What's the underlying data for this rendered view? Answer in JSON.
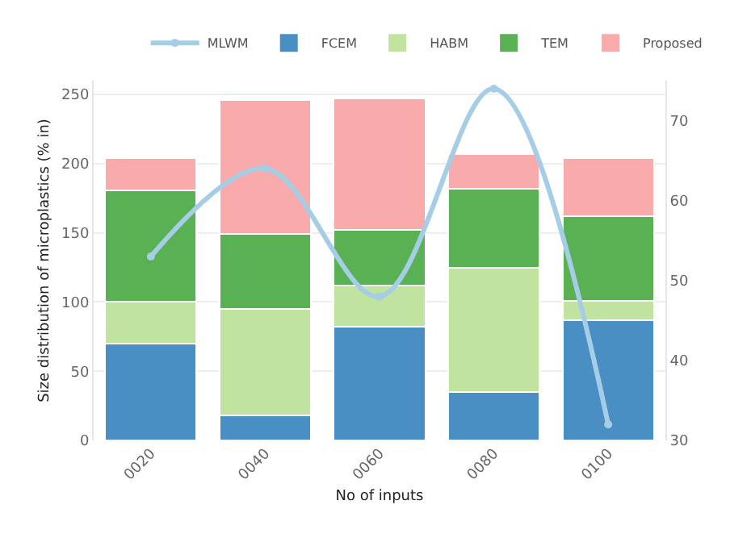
{
  "chart_data": {
    "type": "bar",
    "stacked": true,
    "xlabel": "No of inputs",
    "ylabel": "Size distribution of microplastics (% in)",
    "categories": [
      "0020",
      "0040",
      "0060",
      "0080",
      "0100"
    ],
    "series": [
      {
        "name": "MLWM",
        "type": "line",
        "axis": "y2",
        "color": "#a6cde6",
        "values": [
          53,
          64,
          48,
          74,
          32
        ]
      },
      {
        "name": "FCEM",
        "color": "#4a8fc4",
        "values": [
          70,
          18,
          82,
          35,
          87
        ]
      },
      {
        "name": "HABM",
        "color": "#c0e4a0",
        "values": [
          30,
          77,
          30,
          90,
          14
        ]
      },
      {
        "name": "TEM",
        "color": "#59b153",
        "values": [
          81,
          54,
          40,
          57,
          61
        ]
      },
      {
        "name": "Proposed",
        "color": "#f9aaaa",
        "values": [
          23,
          97,
          95,
          25,
          42
        ]
      }
    ],
    "ylim": [
      0,
      260
    ],
    "yticks": [
      0,
      50,
      100,
      150,
      200,
      250
    ],
    "y2lim": [
      30,
      75
    ],
    "y2ticks": [
      30,
      40,
      50,
      60,
      70
    ],
    "grid": "y",
    "legend": "top right",
    "marker": "circle"
  }
}
